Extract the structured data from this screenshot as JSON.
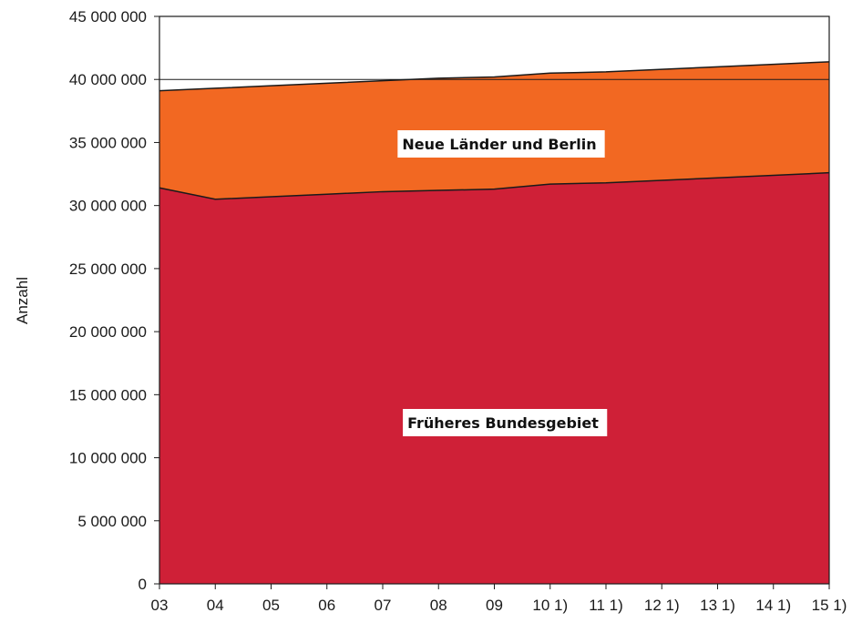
{
  "chart_data": {
    "type": "area",
    "stacked": true,
    "ylabel": "Anzahl",
    "xlabel": "",
    "categories": [
      "03",
      "04",
      "05",
      "06",
      "07",
      "08",
      "09",
      "10 1)",
      "11 1)",
      "12 1)",
      "13 1)",
      "14 1)",
      "15 1)"
    ],
    "ylim": [
      0,
      45000000
    ],
    "yticks": [
      0,
      5000000,
      10000000,
      15000000,
      20000000,
      25000000,
      30000000,
      35000000,
      40000000,
      45000000
    ],
    "ytick_labels": [
      "0",
      "5 000 000",
      "10 000 000",
      "15 000 000",
      "20 000 000",
      "25 000 000",
      "30 000 000",
      "35 000 000",
      "40 000 000",
      "45 000 000"
    ],
    "reference_line": 40000000,
    "series": [
      {
        "name": "Früheres Bundesgebiet",
        "color": "#cf2037",
        "values": [
          31400000,
          30500000,
          30700000,
          30900000,
          31100000,
          31200000,
          31300000,
          31700000,
          31800000,
          32000000,
          32200000,
          32400000,
          32600000
        ]
      },
      {
        "name": "Neue Länder und Berlin",
        "color": "#f26822",
        "values": [
          7700000,
          8800000,
          8800000,
          8800000,
          8800000,
          8900000,
          8900000,
          8800000,
          8800000,
          8800000,
          8800000,
          8800000,
          8800000
        ]
      }
    ]
  }
}
